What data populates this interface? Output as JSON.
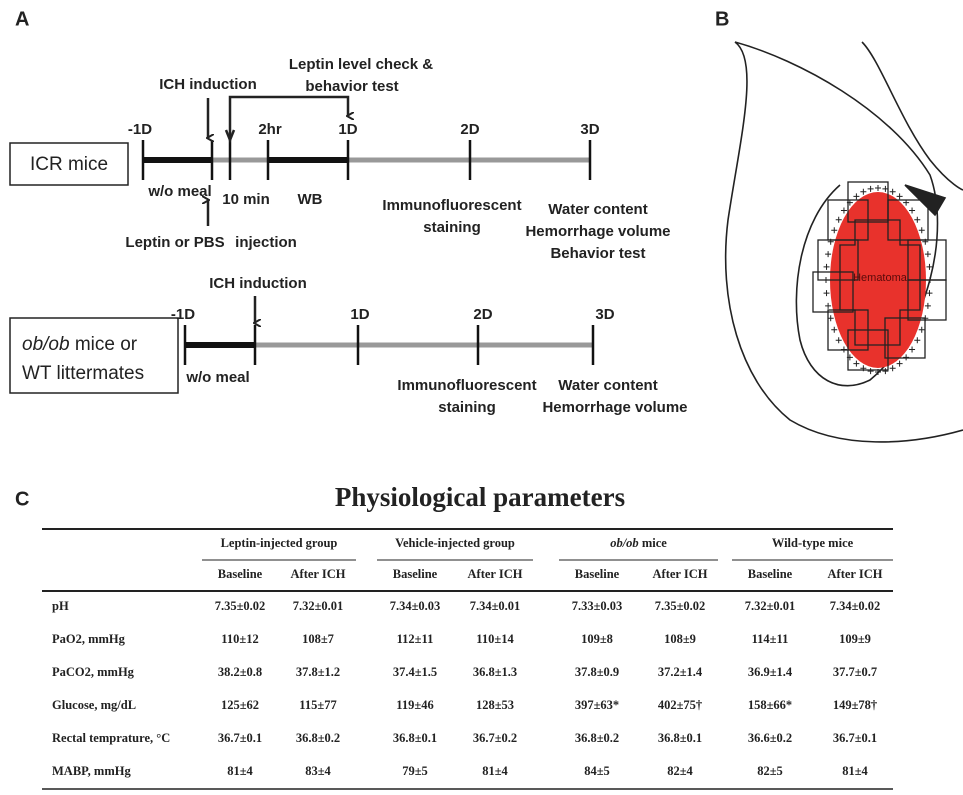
{
  "panel_labels": [
    "A",
    "B",
    "C"
  ],
  "timeline_icr": {
    "group": "ICR mice",
    "time_labels": [
      "-1D",
      "2hr",
      "1D",
      "2D",
      "3D"
    ],
    "ich": "ICH induction",
    "check": [
      "Leptin level  check &",
      "behavior test"
    ],
    "fasting": "w/o meal",
    "delay": "10 min",
    "wb": "WB",
    "injection": [
      "Leptin or PBS",
      "injection"
    ],
    "day2": [
      "Immunofluorescent",
      "staining"
    ],
    "day3": [
      "Water content",
      "Hemorrhage volume",
      "Behavior test"
    ]
  },
  "timeline_ob": {
    "group": [
      "ob/ob",
      " mice or",
      "WT littermates"
    ],
    "time_labels": [
      "-1D",
      "1D",
      "2D",
      "3D"
    ],
    "ich": "ICH induction",
    "fasting": "w/o meal",
    "day2": [
      "Immunofluorescent",
      "staining"
    ],
    "day3": [
      "Water content",
      "Hemorrhage volume"
    ]
  },
  "brain": {
    "hematoma": "Hematoma"
  },
  "table": {
    "title": "Physiological parameters",
    "groups": [
      [
        "Leptin-injected group"
      ],
      [
        "Vehicle-injected group"
      ],
      [
        "ob/ob",
        " mice"
      ],
      [
        "Wild-type mice"
      ]
    ],
    "subheaders": [
      "Baseline",
      "After ICH",
      "Baseline",
      "After ICH",
      "Baseline",
      "After ICH",
      "Baseline",
      "After ICH"
    ],
    "rows": [
      {
        "label": "pH",
        "values": [
          "7.35±0.02",
          "7.32±0.01",
          "7.34±0.03",
          "7.34±0.01",
          "7.33±0.03",
          "7.35±0.02",
          "7.32±0.01",
          "7.34±0.02"
        ]
      },
      {
        "label": "PaO2, mmHg",
        "values": [
          "110±12",
          "108±7",
          "112±11",
          "110±14",
          "109±8",
          "108±9",
          "114±11",
          "109±9"
        ]
      },
      {
        "label": "PaCO2, mmHg",
        "values": [
          "38.2±0.8",
          "37.8±1.2",
          "37.4±1.5",
          "36.8±1.3",
          "37.8±0.9",
          "37.2±1.4",
          "36.9±1.4",
          "37.7±0.7"
        ]
      },
      {
        "label": "Glucose, mg/dL",
        "values": [
          "125±62",
          "115±77",
          "119±46",
          "128±53",
          "397±63*",
          "402±75†",
          "158±66*",
          "149±78†"
        ]
      },
      {
        "label": "Rectal temprature, °C",
        "values": [
          "36.7±0.1",
          "36.8±0.2",
          "36.8±0.1",
          "36.7±0.2",
          "36.8±0.2",
          "36.8±0.1",
          "36.6±0.2",
          "36.7±0.1"
        ]
      },
      {
        "label": "MABP, mmHg",
        "values": [
          "81±4",
          "83±4",
          "79±5",
          "81±4",
          "84±5",
          "82±4",
          "82±5",
          "81±4"
        ]
      }
    ]
  }
}
